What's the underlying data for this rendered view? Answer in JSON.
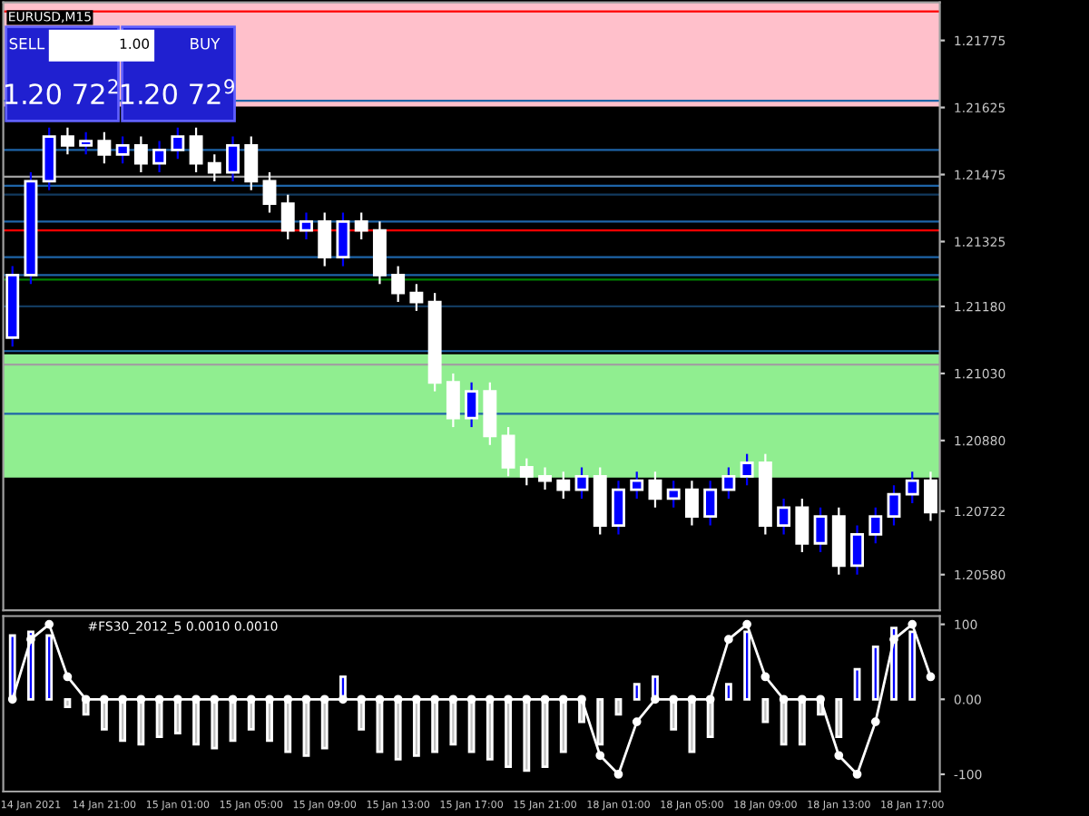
{
  "chart_data": [
    {
      "type": "candlestick",
      "title": "EURUSD,M15",
      "tick_labels": "y",
      "categories": [
        null,
        null,
        null,
        null,
        null,
        null,
        null,
        null,
        null,
        null,
        null,
        null,
        null,
        null,
        null,
        null,
        null,
        null,
        null,
        null,
        null,
        null,
        null,
        null,
        null,
        null,
        null,
        null,
        null,
        null,
        null,
        null,
        null,
        null,
        null,
        null,
        null,
        null,
        null,
        null,
        null,
        null,
        null,
        null,
        null,
        null,
        null,
        null,
        null,
        null,
        null
      ],
      "ohlc": [
        [
          1.2111,
          1.2127,
          1.2109,
          1.2125
        ],
        [
          1.2125,
          1.2148,
          1.2123,
          1.2146
        ],
        [
          1.2146,
          1.2158,
          1.2144,
          1.2156
        ],
        [
          1.2156,
          1.2158,
          1.2152,
          1.2154
        ],
        [
          1.2154,
          1.2157,
          1.2152,
          1.2155
        ],
        [
          1.2155,
          1.2157,
          1.215,
          1.2152
        ],
        [
          1.2152,
          1.2156,
          1.215,
          1.2154
        ],
        [
          1.2154,
          1.2156,
          1.2148,
          1.215
        ],
        [
          1.215,
          1.2155,
          1.2148,
          1.2153
        ],
        [
          1.2153,
          1.2158,
          1.2151,
          1.2156
        ],
        [
          1.2156,
          1.2158,
          1.2148,
          1.215
        ],
        [
          1.215,
          1.2152,
          1.2146,
          1.2148
        ],
        [
          1.2148,
          1.2156,
          1.2146,
          1.2154
        ],
        [
          1.2154,
          1.2156,
          1.2144,
          1.2146
        ],
        [
          1.2146,
          1.2148,
          1.2139,
          1.2141
        ],
        [
          1.2141,
          1.2143,
          1.2133,
          1.2135
        ],
        [
          1.2135,
          1.2139,
          1.2133,
          1.2137
        ],
        [
          1.2137,
          1.2139,
          1.2127,
          1.2129
        ],
        [
          1.2129,
          1.2139,
          1.2127,
          1.2137
        ],
        [
          1.2137,
          1.2139,
          1.2133,
          1.2135
        ],
        [
          1.2135,
          1.2137,
          1.2123,
          1.2125
        ],
        [
          1.2125,
          1.2127,
          1.2119,
          1.2121
        ],
        [
          1.2121,
          1.2123,
          1.2117,
          1.2119
        ],
        [
          1.2119,
          1.2121,
          1.2099,
          1.2101
        ],
        [
          1.2101,
          1.2103,
          1.2091,
          1.2093
        ],
        [
          1.2093,
          1.2101,
          1.2091,
          1.2099
        ],
        [
          1.2099,
          1.2101,
          1.2087,
          1.2089
        ],
        [
          1.2089,
          1.2091,
          1.208,
          1.2082
        ],
        [
          1.2082,
          1.2084,
          1.2078,
          1.208
        ],
        [
          1.208,
          1.2082,
          1.2077,
          1.2079
        ],
        [
          1.2079,
          1.2081,
          1.2075,
          1.2077
        ],
        [
          1.2077,
          1.2082,
          1.2075,
          1.208
        ],
        [
          1.208,
          1.2082,
          1.2067,
          1.2069
        ],
        [
          1.2069,
          1.2079,
          1.2067,
          1.2077
        ],
        [
          1.2077,
          1.2081,
          1.2075,
          1.2079
        ],
        [
          1.2079,
          1.2081,
          1.2073,
          1.2075
        ],
        [
          1.2075,
          1.2079,
          1.2073,
          1.2077
        ],
        [
          1.2077,
          1.2079,
          1.2069,
          1.2071
        ],
        [
          1.2071,
          1.2079,
          1.2069,
          1.2077
        ],
        [
          1.2077,
          1.2082,
          1.2075,
          1.208
        ],
        [
          1.208,
          1.2085,
          1.2078,
          1.2083
        ],
        [
          1.2083,
          1.2085,
          1.2067,
          1.2069
        ],
        [
          1.2069,
          1.2075,
          1.2067,
          1.2073
        ],
        [
          1.2073,
          1.2075,
          1.2063,
          1.2065
        ],
        [
          1.2065,
          1.2073,
          1.2063,
          1.2071
        ],
        [
          1.2071,
          1.2073,
          1.2058,
          1.206
        ],
        [
          1.206,
          1.2069,
          1.2058,
          1.2067
        ],
        [
          1.2067,
          1.2073,
          1.2065,
          1.2071
        ],
        [
          1.2071,
          1.2078,
          1.2069,
          1.2076
        ],
        [
          1.2076,
          1.2081,
          1.2074,
          1.2079
        ],
        [
          1.2079,
          1.2081,
          1.207,
          1.2072
        ]
      ],
      "colors": [
        "#0000ff",
        "#0000ff",
        "#0000ff",
        "#ffffff",
        "#0000ff",
        "#ffffff",
        "#0000ff",
        "#ffffff",
        "#0000ff",
        "#0000ff",
        "#ffffff",
        "#ffffff",
        "#0000ff",
        "#ffffff",
        "#ffffff",
        "#ffffff",
        "#0000ff",
        "#ffffff",
        "#0000ff",
        "#ffffff",
        "#ffffff",
        "#ffffff",
        "#ffffff",
        "#ffffff",
        "#ffffff",
        "#0000ff",
        "#ffffff",
        "#ffffff",
        "#ffffff",
        "#ffffff",
        "#ffffff",
        "#0000ff",
        "#ffffff",
        "#0000ff",
        "#0000ff",
        "#ffffff",
        "#0000ff",
        "#ffffff",
        "#0000ff",
        "#0000ff",
        "#0000ff",
        "#ffffff",
        "#0000ff",
        "#ffffff",
        "#0000ff",
        "#ffffff",
        "#0000ff",
        "#0000ff",
        "#0000ff",
        "#0000ff",
        "#ffffff"
      ],
      "ylim": [
        1.205,
        1.2186
      ],
      "yticks": [
        {
          "value": 1.21775,
          "label": "1.21775"
        },
        {
          "value": 1.21625,
          "label": "1.21625"
        },
        {
          "value": 1.21475,
          "label": "1.21475"
        },
        {
          "value": 1.21325,
          "label": "1.21325"
        },
        {
          "value": 1.2118,
          "label": "1.21180"
        },
        {
          "value": 1.2103,
          "label": "1.21030"
        },
        {
          "value": 1.2088,
          "label": "1.20880"
        },
        {
          "value": 1.20722,
          "label": "1.20722"
        },
        {
          "value": 1.2058,
          "label": "1.20580"
        }
      ],
      "ref_lines": [
        {
          "axis": "y",
          "value": 1.2184,
          "color": "#ff0000"
        },
        {
          "axis": "y",
          "value": 1.2164,
          "color": "#1e64a8"
        },
        {
          "axis": "y",
          "value": 1.2153,
          "color": "#1e64a8"
        },
        {
          "axis": "y",
          "value": 1.2147,
          "color": "#a0a0a0"
        },
        {
          "axis": "y",
          "value": 1.2145,
          "color": "#1e64a8"
        },
        {
          "axis": "y",
          "value": 1.2143,
          "color": "#123a5e"
        },
        {
          "axis": "y",
          "value": 1.2137,
          "color": "#1e64a8"
        },
        {
          "axis": "y",
          "value": 1.2135,
          "color": "#ff0000"
        },
        {
          "axis": "y",
          "value": 1.2129,
          "color": "#1e64a8"
        },
        {
          "axis": "y",
          "value": 1.2125,
          "color": "#1e64a8"
        },
        {
          "axis": "y",
          "value": 1.2124,
          "color": "#008000"
        },
        {
          "axis": "y",
          "value": 1.2118,
          "color": "#123a5e"
        },
        {
          "axis": "y",
          "value": 1.2108,
          "color": "#1e64a8"
        },
        {
          "axis": "y",
          "value": 1.2105,
          "color": "#a0a0a0"
        },
        {
          "axis": "y",
          "value": 1.2094,
          "color": "#1e64a8"
        }
      ],
      "bands": [
        {
          "axis": "y",
          "from": 1.2163,
          "to": 1.2186,
          "color": "#ffc0cb"
        },
        {
          "axis": "y",
          "from": 1.209,
          "to": 1.2107,
          "color": "#90ee90"
        },
        {
          "axis": "y",
          "from": 1.208,
          "to": 1.2098,
          "color": "#90ee90"
        }
      ],
      "annotations": [
        "SELL",
        "1.00",
        "BUY",
        "1.20 72$^{2}$",
        "1.20 72$^{9}$"
      ]
    },
    {
      "type": "bar",
      "title": "#FS30_2012_5 0.0010 0.0010",
      "categories": [
        null,
        "14 Jan 2021",
        null,
        null,
        null,
        "14 Jan 21:00",
        null,
        null,
        null,
        "15 Jan 01:00",
        null,
        null,
        null,
        "15 Jan 05:00",
        null,
        null,
        null,
        "15 Jan 09:00",
        null,
        null,
        null,
        "15 Jan 13:00",
        null,
        null,
        null,
        "15 Jan 17:00",
        null,
        null,
        null,
        "15 Jan 21:00",
        null,
        null,
        null,
        "18 Jan 01:00",
        null,
        null,
        null,
        "18 Jan 05:00",
        null,
        null,
        null,
        "18 Jan 09:00",
        null,
        null,
        null,
        "18 Jan 13:00",
        null,
        null,
        null,
        "18 Jan 17:00",
        null
      ],
      "ylim": [
        -123,
        111
      ],
      "yticks": [
        {
          "value": 100,
          "label": "100"
        },
        {
          "value": 0,
          "label": "0.00"
        },
        {
          "value": -100,
          "label": "-100"
        }
      ],
      "series": [
        {
          "type": "bar",
          "values": [
            85,
            90,
            85,
            -10,
            -20,
            -40,
            -55,
            -60,
            -50,
            -45,
            -60,
            -65,
            -55,
            -40,
            -55,
            -70,
            -75,
            -65,
            30,
            -40,
            -70,
            -80,
            -75,
            -70,
            -60,
            -70,
            -80,
            -90,
            -95,
            -90,
            -70,
            -30,
            -60,
            -20,
            20,
            30,
            -40,
            -70,
            -50,
            20,
            90,
            -30,
            -60,
            -60,
            -20,
            -50,
            40,
            70,
            95,
            90,
            null
          ],
          "colors": [
            "#0000ff",
            "#0000ff",
            "#0000ff",
            "#c0c0c0",
            "#c0c0c0",
            "#c0c0c0",
            "#c0c0c0",
            "#c0c0c0",
            "#c0c0c0",
            "#c0c0c0",
            "#c0c0c0",
            "#c0c0c0",
            "#c0c0c0",
            "#c0c0c0",
            "#c0c0c0",
            "#c0c0c0",
            "#c0c0c0",
            "#c0c0c0",
            "#0000ff",
            "#c0c0c0",
            "#c0c0c0",
            "#c0c0c0",
            "#c0c0c0",
            "#c0c0c0",
            "#c0c0c0",
            "#c0c0c0",
            "#c0c0c0",
            "#c0c0c0",
            "#c0c0c0",
            "#c0c0c0",
            "#c0c0c0",
            "#c0c0c0",
            "#c0c0c0",
            "#c0c0c0",
            "#0000ff",
            "#0000ff",
            "#c0c0c0",
            "#c0c0c0",
            "#c0c0c0",
            "#0000ff",
            "#0000ff",
            "#c0c0c0",
            "#c0c0c0",
            "#c0c0c0",
            "#c0c0c0",
            "#c0c0c0",
            "#0000ff",
            "#0000ff",
            "#0000ff",
            "#0000ff",
            "#c0c0c0"
          ]
        },
        {
          "type": "line",
          "color": "#ffffff",
          "marker": "circle",
          "values": [
            0,
            80,
            100,
            30,
            0,
            0,
            0,
            0,
            0,
            0,
            0,
            0,
            0,
            0,
            0,
            0,
            0,
            0,
            0,
            0,
            0,
            0,
            0,
            0,
            0,
            0,
            0,
            0,
            0,
            0,
            0,
            0,
            -75,
            -100,
            -30,
            0,
            0,
            0,
            0,
            80,
            100,
            30,
            0,
            0,
            0,
            -75,
            -100,
            -30,
            80,
            100,
            30
          ]
        }
      ]
    }
  ]
}
